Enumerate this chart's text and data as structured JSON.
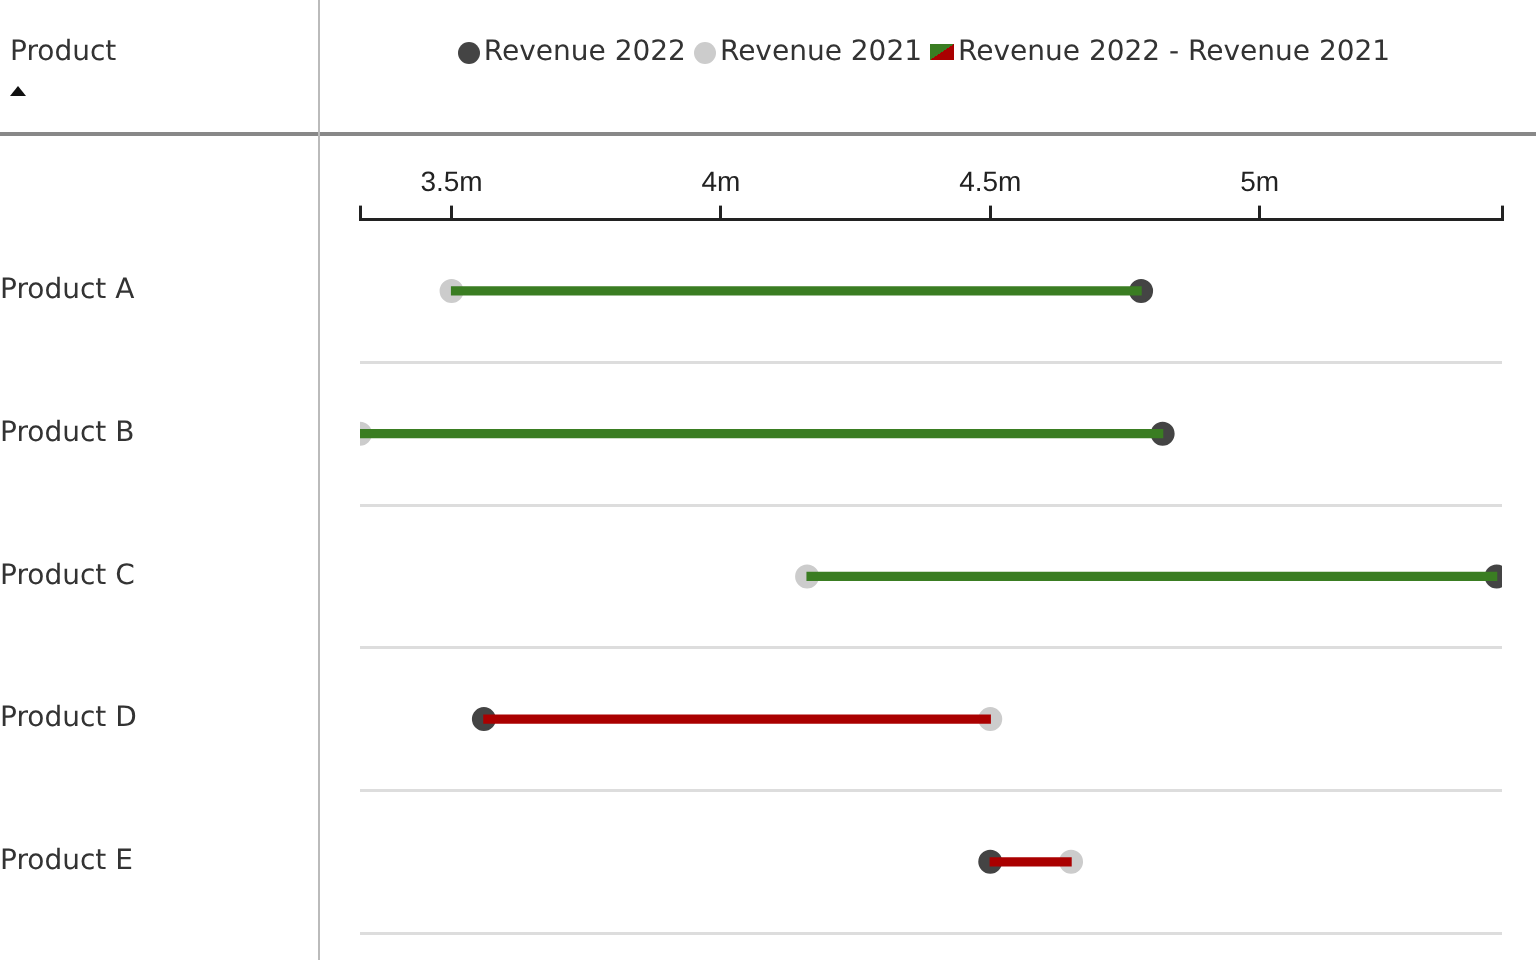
{
  "chart_data": {
    "type": "bar",
    "orientation": "horizontal",
    "ylabel": "Product",
    "categories": [
      "Product A",
      "Product B",
      "Product C",
      "Product D",
      "Product E"
    ],
    "xlim": [
      3.33,
      5.45
    ],
    "xticks": [
      {
        "value": 3.33,
        "label": null
      },
      {
        "value": 3.5,
        "label": "3.5m"
      },
      {
        "value": 4,
        "label": "4m"
      },
      {
        "value": 4.5,
        "label": "4.5m"
      },
      {
        "value": 5,
        "label": "5m"
      },
      {
        "value": 5.45,
        "label": null
      }
    ],
    "grid": "y",
    "legend": "top",
    "marker": "circle",
    "series": [
      {
        "name": "Revenue 2022",
        "type": "scatter",
        "color": "#444444",
        "values": [
          4.78,
          4.82,
          5.44,
          3.56,
          4.5
        ]
      },
      {
        "name": "Revenue 2021",
        "type": "scatter",
        "color": "#cccccc",
        "values": [
          3.5,
          3.33,
          4.16,
          4.5,
          4.65
        ]
      },
      {
        "name": "Revenue 2022 - Revenue 2021",
        "type": "bar",
        "colors": [
          "#3a7d22",
          "#3a7d22",
          "#3a7d22",
          "#aa0000",
          "#aa0000"
        ],
        "base": [
          3.5,
          3.33,
          4.16,
          4.5,
          4.65
        ],
        "values": [
          1.28,
          1.49,
          1.28,
          -0.94,
          -0.15
        ]
      }
    ]
  }
}
